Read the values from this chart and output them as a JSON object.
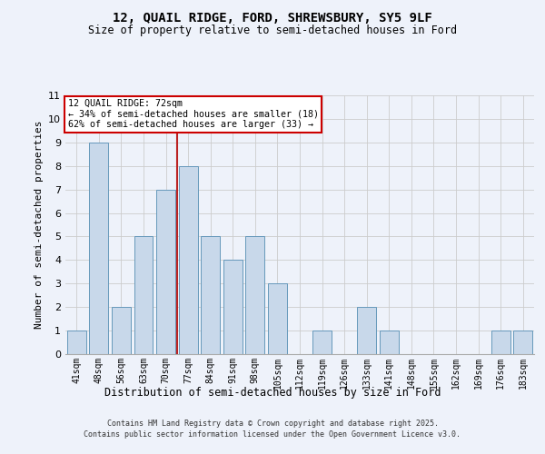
{
  "title1": "12, QUAIL RIDGE, FORD, SHREWSBURY, SY5 9LF",
  "title2": "Size of property relative to semi-detached houses in Ford",
  "xlabel": "Distribution of semi-detached houses by size in Ford",
  "ylabel": "Number of semi-detached properties",
  "categories": [
    "41sqm",
    "48sqm",
    "56sqm",
    "63sqm",
    "70sqm",
    "77sqm",
    "84sqm",
    "91sqm",
    "98sqm",
    "105sqm",
    "112sqm",
    "119sqm",
    "126sqm",
    "133sqm",
    "141sqm",
    "148sqm",
    "155sqm",
    "162sqm",
    "169sqm",
    "176sqm",
    "183sqm"
  ],
  "values": [
    1,
    9,
    2,
    5,
    7,
    8,
    5,
    4,
    5,
    3,
    0,
    1,
    0,
    2,
    1,
    0,
    0,
    0,
    0,
    1,
    1
  ],
  "bar_color": "#c8d8ea",
  "bar_edge_color": "#6699bb",
  "grid_color": "#cccccc",
  "background_color": "#eef2fa",
  "red_line_x": 4.5,
  "annotation_title": "12 QUAIL RIDGE: 72sqm",
  "annotation_line1": "← 34% of semi-detached houses are smaller (18)",
  "annotation_line2": "62% of semi-detached houses are larger (33) →",
  "annotation_box_color": "#ffffff",
  "annotation_box_edge": "#cc0000",
  "red_line_color": "#bb2222",
  "ylim": [
    0,
    11
  ],
  "yticks": [
    0,
    1,
    2,
    3,
    4,
    5,
    6,
    7,
    8,
    9,
    10,
    11
  ],
  "footer1": "Contains HM Land Registry data © Crown copyright and database right 2025.",
  "footer2": "Contains public sector information licensed under the Open Government Licence v3.0."
}
